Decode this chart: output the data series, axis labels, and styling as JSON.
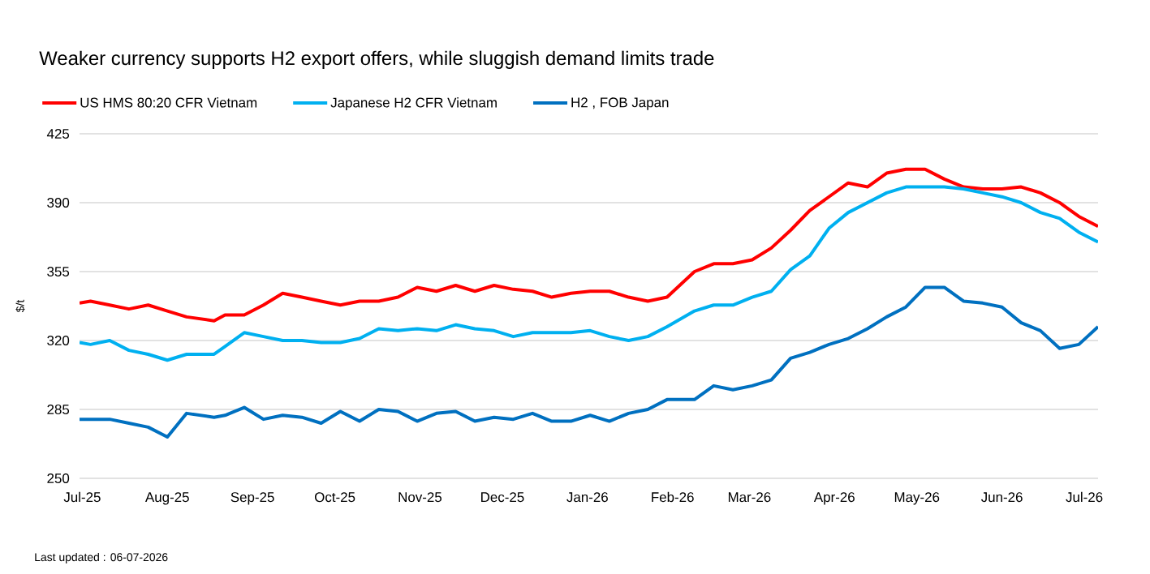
{
  "chart_data": {
    "type": "line",
    "title": "Weaker currency supports H2 export offers, while sluggish demand limits trade",
    "ylabel": "$/t",
    "annotations": [
      "Last updated : 06-07-2026"
    ],
    "x": [
      "2025-06-30",
      "2025-07-04",
      "2025-07-11",
      "2025-07-18",
      "2025-07-25",
      "2025-08-01",
      "2025-08-08",
      "2025-08-18",
      "2025-08-22",
      "2025-08-29",
      "2025-09-05",
      "2025-09-12",
      "2025-09-19",
      "2025-09-26",
      "2025-10-03",
      "2025-10-10",
      "2025-10-17",
      "2025-10-24",
      "2025-10-31",
      "2025-11-07",
      "2025-11-14",
      "2025-11-21",
      "2025-11-28",
      "2025-12-05",
      "2025-12-12",
      "2025-12-19",
      "2025-12-26",
      "2026-01-02",
      "2026-01-09",
      "2026-01-16",
      "2026-01-23",
      "2026-01-30",
      "2026-02-09",
      "2026-02-16",
      "2026-02-23",
      "2026-03-02",
      "2026-03-09",
      "2026-03-16",
      "2026-03-23",
      "2026-03-30",
      "2026-04-06",
      "2026-04-13",
      "2026-04-20",
      "2026-04-27",
      "2026-05-04",
      "2026-05-11",
      "2026-05-18",
      "2026-05-25",
      "2026-06-01",
      "2026-06-08",
      "2026-06-15",
      "2026-06-22",
      "2026-06-29",
      "2026-07-06"
    ],
    "series": [
      {
        "name": "US HMS 80:20 CFR Vietnam",
        "color": "#ff0000",
        "values": [
          339,
          340,
          338,
          336,
          338,
          335,
          332,
          330,
          333,
          333,
          338,
          344,
          342,
          340,
          338,
          340,
          340,
          342,
          347,
          345,
          348,
          345,
          348,
          346,
          345,
          342,
          344,
          345,
          345,
          342,
          340,
          342,
          355,
          359,
          359,
          361,
          367,
          376,
          386,
          393,
          400,
          398,
          405,
          407,
          407,
          402,
          398,
          397,
          397,
          398,
          395,
          390,
          383,
          378
        ]
      },
      {
        "name": "Japanese H2 CFR Vietnam",
        "color": "#00b0f0",
        "values": [
          319,
          318,
          320,
          315,
          313,
          310,
          313,
          313,
          317,
          324,
          322,
          320,
          320,
          319,
          319,
          321,
          326,
          325,
          326,
          325,
          328,
          326,
          325,
          322,
          324,
          324,
          324,
          325,
          322,
          320,
          322,
          327,
          335,
          338,
          338,
          342,
          345,
          356,
          363,
          377,
          385,
          390,
          395,
          398,
          398,
          398,
          397,
          395,
          393,
          390,
          385,
          382,
          375,
          370
        ]
      },
      {
        "name": "H2 , FOB Japan",
        "color": "#0070c0",
        "values": [
          280,
          280,
          280,
          278,
          276,
          271,
          283,
          281,
          282,
          286,
          280,
          282,
          281,
          278,
          284,
          279,
          285,
          284,
          279,
          283,
          284,
          279,
          281,
          280,
          283,
          279,
          279,
          282,
          279,
          283,
          285,
          290,
          290,
          297,
          295,
          297,
          300,
          311,
          314,
          318,
          321,
          326,
          332,
          337,
          347,
          347,
          340,
          339,
          337,
          329,
          325,
          316,
          318,
          327
        ]
      }
    ],
    "xlim": [
      "2025-06-30",
      "2026-07-06"
    ],
    "ylim": [
      250,
      425
    ],
    "xticks": [
      {
        "value": "2025-07-01",
        "label": "Jul-25"
      },
      {
        "value": "2025-08-01",
        "label": "Aug-25"
      },
      {
        "value": "2025-09-01",
        "label": "Sep-25"
      },
      {
        "value": "2025-10-01",
        "label": "Oct-25"
      },
      {
        "value": "2025-11-01",
        "label": "Nov-25"
      },
      {
        "value": "2025-12-01",
        "label": "Dec-25"
      },
      {
        "value": "2026-01-01",
        "label": "Jan-26"
      },
      {
        "value": "2026-02-01",
        "label": "Feb-26"
      },
      {
        "value": "2026-03-01",
        "label": "Mar-26"
      },
      {
        "value": "2026-04-01",
        "label": "Apr-26"
      },
      {
        "value": "2026-05-01",
        "label": "May-26"
      },
      {
        "value": "2026-06-01",
        "label": "Jun-26"
      },
      {
        "value": "2026-07-01",
        "label": "Jul-26"
      }
    ],
    "yticks": [
      250,
      285,
      320,
      355,
      390,
      425
    ],
    "grid": "y",
    "legend": "top left"
  }
}
